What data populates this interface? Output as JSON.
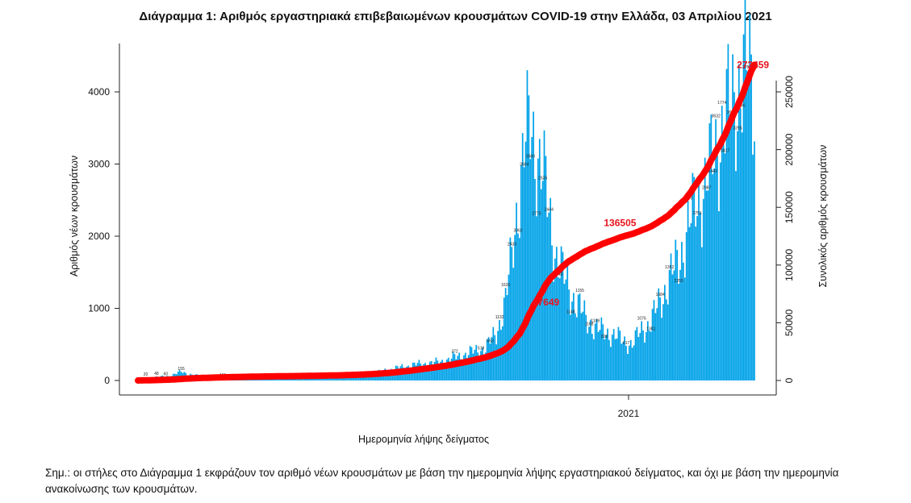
{
  "chart_data": {
    "type": "bar",
    "title": "Διάγραμμα 1: Αριθμός εργαστηριακά επιβεβαιωμένων κρουσμάτων COVID-19 στην Ελλάδα, 03 Απριλίου 2021",
    "xlabel": "Ημερομηνία λήψης δείγματος",
    "ylabel": "Αριθμός νέων κρουσμάτων",
    "y2label": "Συνολικός αριθμός κρουσμάτων",
    "x_tick_label": "2021",
    "x_tick_index": 318,
    "ylim": [
      0,
      4700
    ],
    "y2lim": [
      0,
      285000
    ],
    "yticks": [
      0,
      1000,
      2000,
      3000,
      4000
    ],
    "y2ticks": [
      0,
      50000,
      100000,
      150000,
      200000,
      250000
    ],
    "bar_color": "#00a2e8",
    "line_color": "#ff0000",
    "n_days": 400,
    "series": [
      {
        "name": "Αριθμός νέων κρουσμάτων",
        "type": "bar",
        "keypoints": [
          [
            0,
            25
          ],
          [
            10,
            45
          ],
          [
            20,
            60
          ],
          [
            28,
            120
          ],
          [
            33,
            90
          ],
          [
            40,
            60
          ],
          [
            55,
            45
          ],
          [
            70,
            35
          ],
          [
            90,
            20
          ],
          [
            110,
            25
          ],
          [
            130,
            40
          ],
          [
            150,
            80
          ],
          [
            160,
            140
          ],
          [
            170,
            180
          ],
          [
            180,
            220
          ],
          [
            195,
            250
          ],
          [
            210,
            350
          ],
          [
            225,
            450
          ],
          [
            232,
            650
          ],
          [
            238,
            1100
          ],
          [
            242,
            1700
          ],
          [
            246,
            2500
          ],
          [
            250,
            3200
          ],
          [
            254,
            3500
          ],
          [
            258,
            3200
          ],
          [
            262,
            2900
          ],
          [
            266,
            2300
          ],
          [
            270,
            1800
          ],
          [
            276,
            1400
          ],
          [
            282,
            1150
          ],
          [
            290,
            850
          ],
          [
            298,
            700
          ],
          [
            306,
            650
          ],
          [
            314,
            550
          ],
          [
            320,
            500
          ],
          [
            326,
            700
          ],
          [
            332,
            800
          ],
          [
            338,
            1100
          ],
          [
            344,
            1400
          ],
          [
            350,
            1650
          ],
          [
            356,
            2100
          ],
          [
            362,
            2500
          ],
          [
            368,
            2750
          ],
          [
            374,
            3200
          ],
          [
            380,
            3600
          ],
          [
            386,
            3900
          ],
          [
            392,
            4300
          ],
          [
            396,
            4200
          ],
          [
            400,
            3800
          ]
        ]
      },
      {
        "name": "Συνολικός αριθμός κρουσμάτων",
        "type": "line",
        "axis": "right",
        "derived_from": "cumulative sum of new cases"
      }
    ],
    "bar_labels": [
      {
        "i": 5,
        "text": "20"
      },
      {
        "i": 12,
        "text": "48"
      },
      {
        "i": 18,
        "text": "60"
      },
      {
        "i": 28,
        "text": "155"
      },
      {
        "i": 55,
        "text": "161"
      },
      {
        "i": 205,
        "text": "372"
      },
      {
        "i": 222,
        "text": "518"
      },
      {
        "i": 228,
        "text": "653"
      },
      {
        "i": 234,
        "text": "1132"
      },
      {
        "i": 238,
        "text": "1626"
      },
      {
        "i": 242,
        "text": "2433"
      },
      {
        "i": 246,
        "text": "3062"
      },
      {
        "i": 250,
        "text": "3604"
      },
      {
        "i": 254,
        "text": "3560"
      },
      {
        "i": 258,
        "text": "2775"
      },
      {
        "i": 262,
        "text": "2535"
      },
      {
        "i": 266,
        "text": "2444"
      },
      {
        "i": 272,
        "text": "1546"
      },
      {
        "i": 280,
        "text": "1148"
      },
      {
        "i": 286,
        "text": "1155"
      },
      {
        "i": 292,
        "text": "1168"
      },
      {
        "i": 296,
        "text": "1109"
      },
      {
        "i": 302,
        "text": "826"
      },
      {
        "i": 316,
        "text": "617"
      },
      {
        "i": 326,
        "text": "1076"
      },
      {
        "i": 332,
        "text": "1381"
      },
      {
        "i": 338,
        "text": "1684"
      },
      {
        "i": 344,
        "text": "1352"
      },
      {
        "i": 350,
        "text": "2255"
      },
      {
        "i": 356,
        "text": "2949"
      },
      {
        "i": 362,
        "text": "2751"
      },
      {
        "i": 368,
        "text": "2987"
      },
      {
        "i": 374,
        "text": "3632"
      },
      {
        "i": 380,
        "text": "3417"
      },
      {
        "i": 384,
        "text": "3622"
      },
      {
        "i": 388,
        "text": "3295"
      },
      {
        "i": 394,
        "text": "2797"
      },
      {
        "i": 378,
        "text": "1774"
      },
      {
        "i": 372,
        "text": "1442"
      },
      {
        "i": 390,
        "text": "1996"
      }
    ],
    "annotations": [
      {
        "i": 264,
        "value": 67649,
        "text": "67649"
      },
      {
        "i": 312,
        "value": 136505,
        "text": "136505"
      },
      {
        "i": 398,
        "value": 273459,
        "text": "273459"
      }
    ]
  },
  "note": "Σημ.: οι στήλες στο Διάγραμμα 1 εκφράζουν τον αριθμό νέων κρουσμάτων με βάση την ημερομηνία λήψης εργαστηριακού δείγματος, και όχι με βάση την ημερομηνία ανακοίνωσης των κρουσμάτων."
}
